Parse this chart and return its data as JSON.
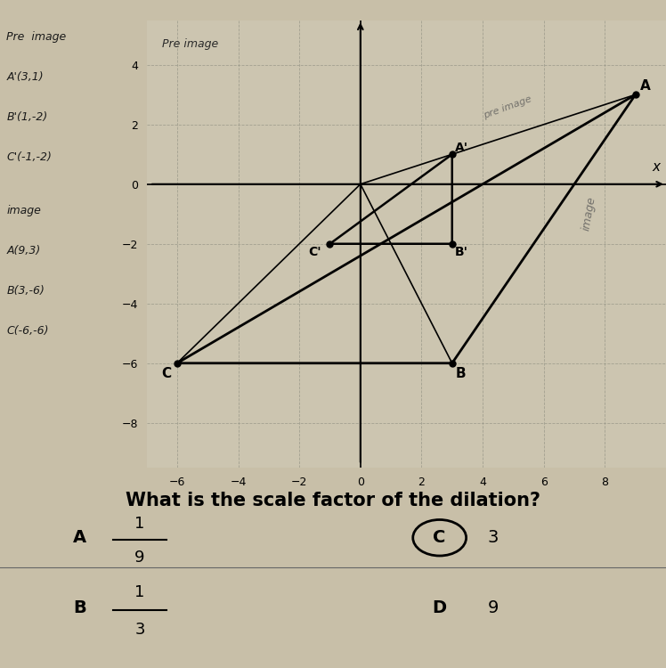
{
  "bg_color": "#c8bfa8",
  "graph_bg": "#ccc5b0",
  "grid_color": "#999888",
  "axis_color": "#222222",
  "xlim": [
    -7,
    10
  ],
  "ylim": [
    -9.5,
    5.5
  ],
  "xticks": [
    -6,
    -4,
    -2,
    0,
    2,
    4,
    6,
    8
  ],
  "yticks": [
    -8,
    -6,
    -4,
    -2,
    0,
    2,
    4
  ],
  "image_triangle": {
    "A": [
      9,
      3
    ],
    "B": [
      3,
      -6
    ],
    "C": [
      -6,
      -6
    ]
  },
  "preimage_triangle": {
    "A_prime": [
      3,
      1
    ],
    "B_prime": [
      3,
      -2
    ],
    "C_prime": [
      -1,
      -2
    ]
  },
  "question_text": "What is the scale factor of the dilation?",
  "choice_A": "1/9",
  "choice_B": "1/3",
  "choice_C": "3",
  "choice_D": "9"
}
